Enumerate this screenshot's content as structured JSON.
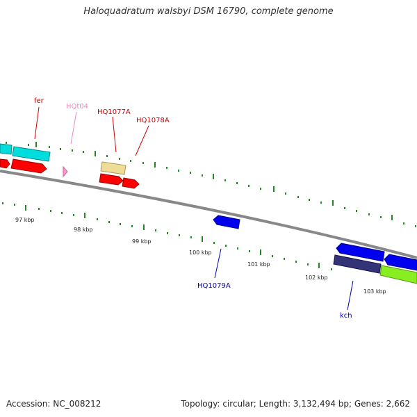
{
  "title": "Haloquadratum walsbyi DSM 16790, complete genome",
  "footer": {
    "accession": "Accession: NC_008212",
    "summary": "Topology: circular; Length: 3,132,494 bp; Genes: 2,662"
  },
  "scale": {
    "ticks": [
      "97 kbp",
      "98 kbp",
      "99 kbp",
      "100 kbp",
      "101 kbp",
      "102 kbp",
      "103 kbp"
    ]
  },
  "genes": [
    {
      "label": "fer",
      "color": "#cc0000"
    },
    {
      "label": "HQt04",
      "color": "#ee88bb"
    },
    {
      "label": "HQ1077A",
      "color": "#cc0000"
    },
    {
      "label": "HQ1078A",
      "color": "#cc0000"
    },
    {
      "label": "HQ1079A",
      "color": "#0000aa"
    },
    {
      "label": "kch",
      "color": "#0000aa"
    }
  ],
  "colors": {
    "backbone": "#888888",
    "ticks": "#228822",
    "cds_forward": "#ff0000",
    "cds_reverse": "#0000ee",
    "trna": "#ff99cc",
    "cyan_feature": "#00dddd",
    "yellow_feature": "#eedd99",
    "purple_feature": "#333377",
    "green_feature": "#88ee22"
  }
}
